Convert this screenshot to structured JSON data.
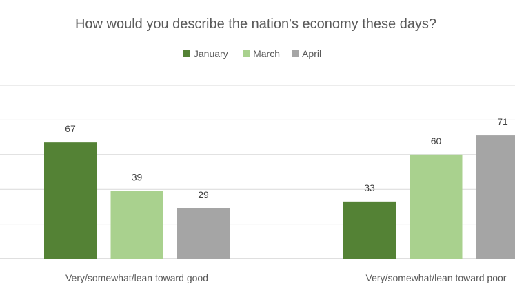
{
  "chart_data": {
    "type": "bar",
    "title": "How would you describe the nation's economy these days?",
    "categories": [
      "Very/somewhat/lean toward good",
      "Very/somewhat/lean toward poor"
    ],
    "series": [
      {
        "name": "January",
        "values": [
          67,
          33
        ],
        "color": "#548235"
      },
      {
        "name": "March",
        "values": [
          39,
          60
        ],
        "color": "#a9d18e"
      },
      {
        "name": "April",
        "values": [
          29,
          71
        ],
        "color": "#a5a5a5"
      }
    ],
    "ylim": [
      0,
      100
    ],
    "grid": true,
    "legend_position": "top"
  }
}
